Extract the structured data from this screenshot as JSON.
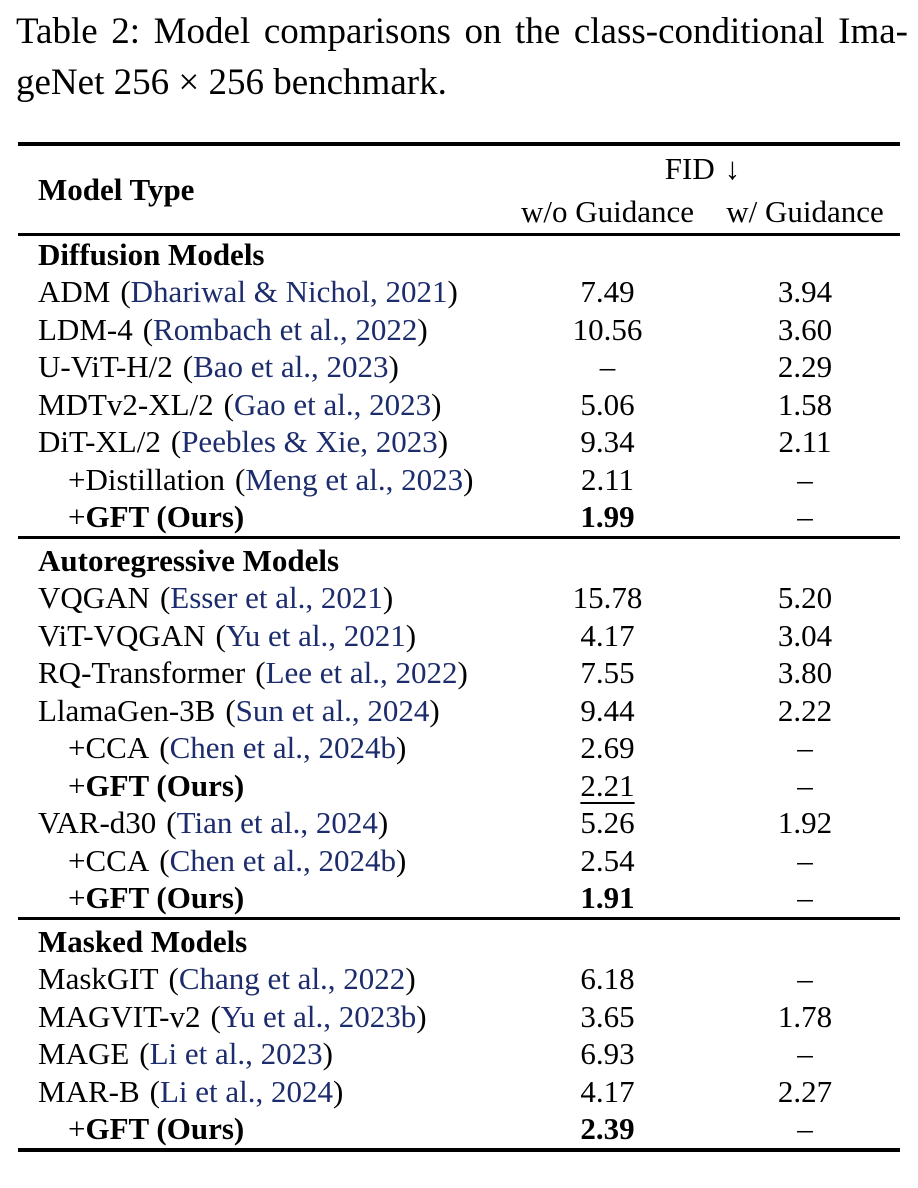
{
  "page": {
    "background_color": "#ffffff",
    "text_color": "#000000",
    "citation_color": "#1c2c6c"
  },
  "caption": {
    "lines": [
      "Table 2: Model comparisons on the class-conditional Ima-",
      "geNet 256 × 256 benchmark."
    ]
  },
  "citation_format": {
    "open": "(",
    "close": ")"
  },
  "table": {
    "header": {
      "model_col": "Model Type",
      "group_col": "FID",
      "group_arrow": "↓",
      "subcols": [
        "w/o Guidance",
        "w/ Guidance"
      ]
    },
    "sections": [
      {
        "title": "Diffusion Models",
        "rows": [
          {
            "name": "ADM",
            "cite": "Dhariwal & Nichol, 2021",
            "wo": "7.49",
            "wg": "3.94"
          },
          {
            "name": "LDM-4",
            "cite": "Rombach et al., 2022",
            "wo": "10.56",
            "wg": "3.60"
          },
          {
            "name": "U-ViT-H/2",
            "cite": "Bao et al., 2023",
            "wo": "–",
            "wg": "2.29"
          },
          {
            "name": "MDTv2-XL/2",
            "cite": "Gao et al., 2023",
            "wo": "5.06",
            "wg": "1.58"
          },
          {
            "name": "DiT-XL/2",
            "cite": "Peebles & Xie, 2023",
            "wo": "9.34",
            "wg": "2.11"
          },
          {
            "prefix": "+",
            "name": "Distillation",
            "cite": "Meng et al., 2023",
            "indent": true,
            "wo": "2.11",
            "wg": "–"
          },
          {
            "prefix": "+",
            "name": "GFT (Ours)",
            "bold": true,
            "indent": true,
            "wo": "1.99",
            "wo_style": "bold",
            "wg": "–"
          }
        ]
      },
      {
        "title": "Autoregressive Models",
        "rows": [
          {
            "name": "VQGAN",
            "cite": "Esser et al., 2021",
            "wo": "15.78",
            "wg": "5.20"
          },
          {
            "name": "ViT-VQGAN",
            "cite": "Yu et al., 2021",
            "wo": "4.17",
            "wg": "3.04"
          },
          {
            "name": "RQ-Transformer",
            "cite": "Lee et al., 2022",
            "wo": "7.55",
            "wg": "3.80"
          },
          {
            "name": "LlamaGen-3B",
            "cite": "Sun et al., 2024",
            "wo": "9.44",
            "wg": "2.22"
          },
          {
            "prefix": "+",
            "name": "CCA",
            "cite": "Chen et al., 2024b",
            "indent": true,
            "wo": "2.69",
            "wg": "–"
          },
          {
            "prefix": "+",
            "name": "GFT (Ours)",
            "bold": true,
            "indent": true,
            "wo": "2.21",
            "wo_style": "underline",
            "wg": "–"
          },
          {
            "name": "VAR-d30",
            "cite": "Tian et al., 2024",
            "wo": "5.26",
            "wg": "1.92"
          },
          {
            "prefix": "+",
            "name": "CCA",
            "cite": "Chen et al., 2024b",
            "indent": true,
            "wo": "2.54",
            "wg": "–"
          },
          {
            "prefix": "+",
            "name": "GFT (Ours)",
            "bold": true,
            "indent": true,
            "wo": "1.91",
            "wo_style": "bold",
            "wg": "–"
          }
        ]
      },
      {
        "title": "Masked Models",
        "rows": [
          {
            "name": "MaskGIT",
            "cite": "Chang et al., 2022",
            "wo": "6.18",
            "wg": "–"
          },
          {
            "name": "MAGVIT-v2",
            "cite": "Yu et al., 2023b",
            "wo": "3.65",
            "wg": "1.78"
          },
          {
            "name": "MAGE",
            "cite": "Li et al., 2023",
            "wo": "6.93",
            "wg": "–"
          },
          {
            "name": "MAR-B",
            "cite": "Li et al., 2024",
            "wo": "4.17",
            "wg": "2.27"
          },
          {
            "prefix": "+",
            "name": "GFT (Ours)",
            "bold": true,
            "indent": true,
            "wo": "2.39",
            "wo_style": "bold",
            "wg": "–"
          }
        ]
      }
    ]
  }
}
